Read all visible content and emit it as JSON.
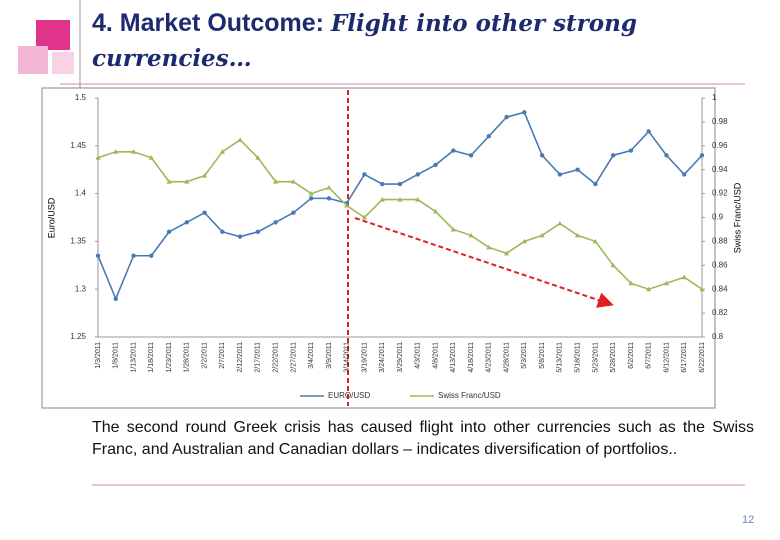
{
  "title_a": "4. Market Outcome:",
  "title_b": "Flight into other strong currencies…",
  "body": "The second round Greek crisis has caused flight into other currencies such as the Swiss Franc, and Australian and Canadian dollars – indicates diversification of portfolios..",
  "page_number": "12",
  "chart_data": {
    "type": "line",
    "y_label": "Euro/USD",
    "y2_label": "Swiss Franc/USD",
    "categories": [
      "1/3/2011",
      "1/8/2011",
      "1/13/2011",
      "1/18/2011",
      "1/23/2011",
      "1/28/2011",
      "2/2/2011",
      "2/7/2011",
      "2/12/2011",
      "2/17/2011",
      "2/22/2011",
      "2/27/2011",
      "3/4/2011",
      "3/9/2011",
      "3/14/2011",
      "3/19/2011",
      "3/24/2011",
      "3/29/2011",
      "4/3/2011",
      "4/8/2011",
      "4/13/2011",
      "4/18/2011",
      "4/23/2011",
      "4/28/2011",
      "5/3/2011",
      "5/8/2011",
      "5/13/2011",
      "5/18/2011",
      "5/23/2011",
      "5/28/2011",
      "6/2/2011",
      "6/7/2011",
      "6/12/2011",
      "6/17/2011",
      "6/22/2011"
    ],
    "series": [
      {
        "name": "EURO/USD",
        "color": "#4a7ab5",
        "axis": "y",
        "values": [
          1.335,
          1.29,
          1.335,
          1.335,
          1.36,
          1.37,
          1.38,
          1.36,
          1.355,
          1.36,
          1.37,
          1.38,
          1.395,
          1.395,
          1.39,
          1.42,
          1.41,
          1.41,
          1.42,
          1.43,
          1.445,
          1.44,
          1.46,
          1.48,
          1.485,
          1.44,
          1.42,
          1.425,
          1.41,
          1.44,
          1.445,
          1.465,
          1.44,
          1.42,
          1.44
        ]
      },
      {
        "name": "Swiss Franc/USD",
        "color": "#9bbb59",
        "axis": "y2",
        "values": [
          0.95,
          0.955,
          0.955,
          0.95,
          0.93,
          0.93,
          0.935,
          0.955,
          0.965,
          0.95,
          0.93,
          0.93,
          0.92,
          0.925,
          0.91,
          0.9,
          0.915,
          0.915,
          0.915,
          0.905,
          0.89,
          0.885,
          0.875,
          0.87,
          0.88,
          0.885,
          0.895,
          0.885,
          0.88,
          0.86,
          0.845,
          0.84,
          0.845,
          0.85,
          0.84
        ]
      }
    ],
    "ylim": [
      1.25,
      1.5
    ],
    "yticks": [
      1.25,
      1.3,
      1.35,
      1.4,
      1.45,
      1.5
    ],
    "y2lim": [
      0.8,
      1
    ],
    "y2ticks": [
      0.8,
      0.82,
      0.84,
      0.86,
      0.88,
      0.9,
      0.92,
      0.94,
      0.96,
      0.98,
      1
    ],
    "legend": "bottom"
  }
}
